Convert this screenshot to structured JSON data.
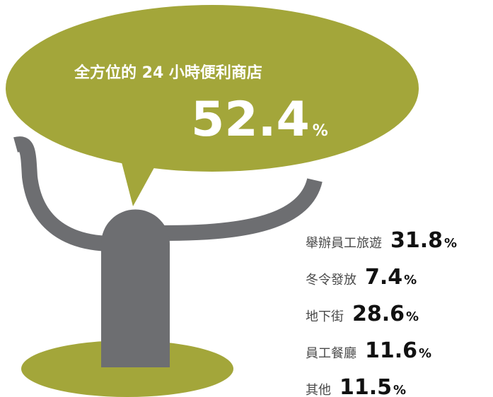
{
  "headline": {
    "title": "全方位的 24 小時便利商店",
    "value": "52.4",
    "unit": "%"
  },
  "items": [
    {
      "label": "舉辦員工旅遊",
      "value": "31.8",
      "unit": "%"
    },
    {
      "label": "冬令發放",
      "value": "7.4",
      "unit": "%"
    },
    {
      "label": "地下街",
      "value": "28.6",
      "unit": "%"
    },
    {
      "label": "員工餐廳",
      "value": "11.6",
      "unit": "%"
    },
    {
      "label": "其他",
      "value": "11.5",
      "unit": "%"
    }
  ]
}
